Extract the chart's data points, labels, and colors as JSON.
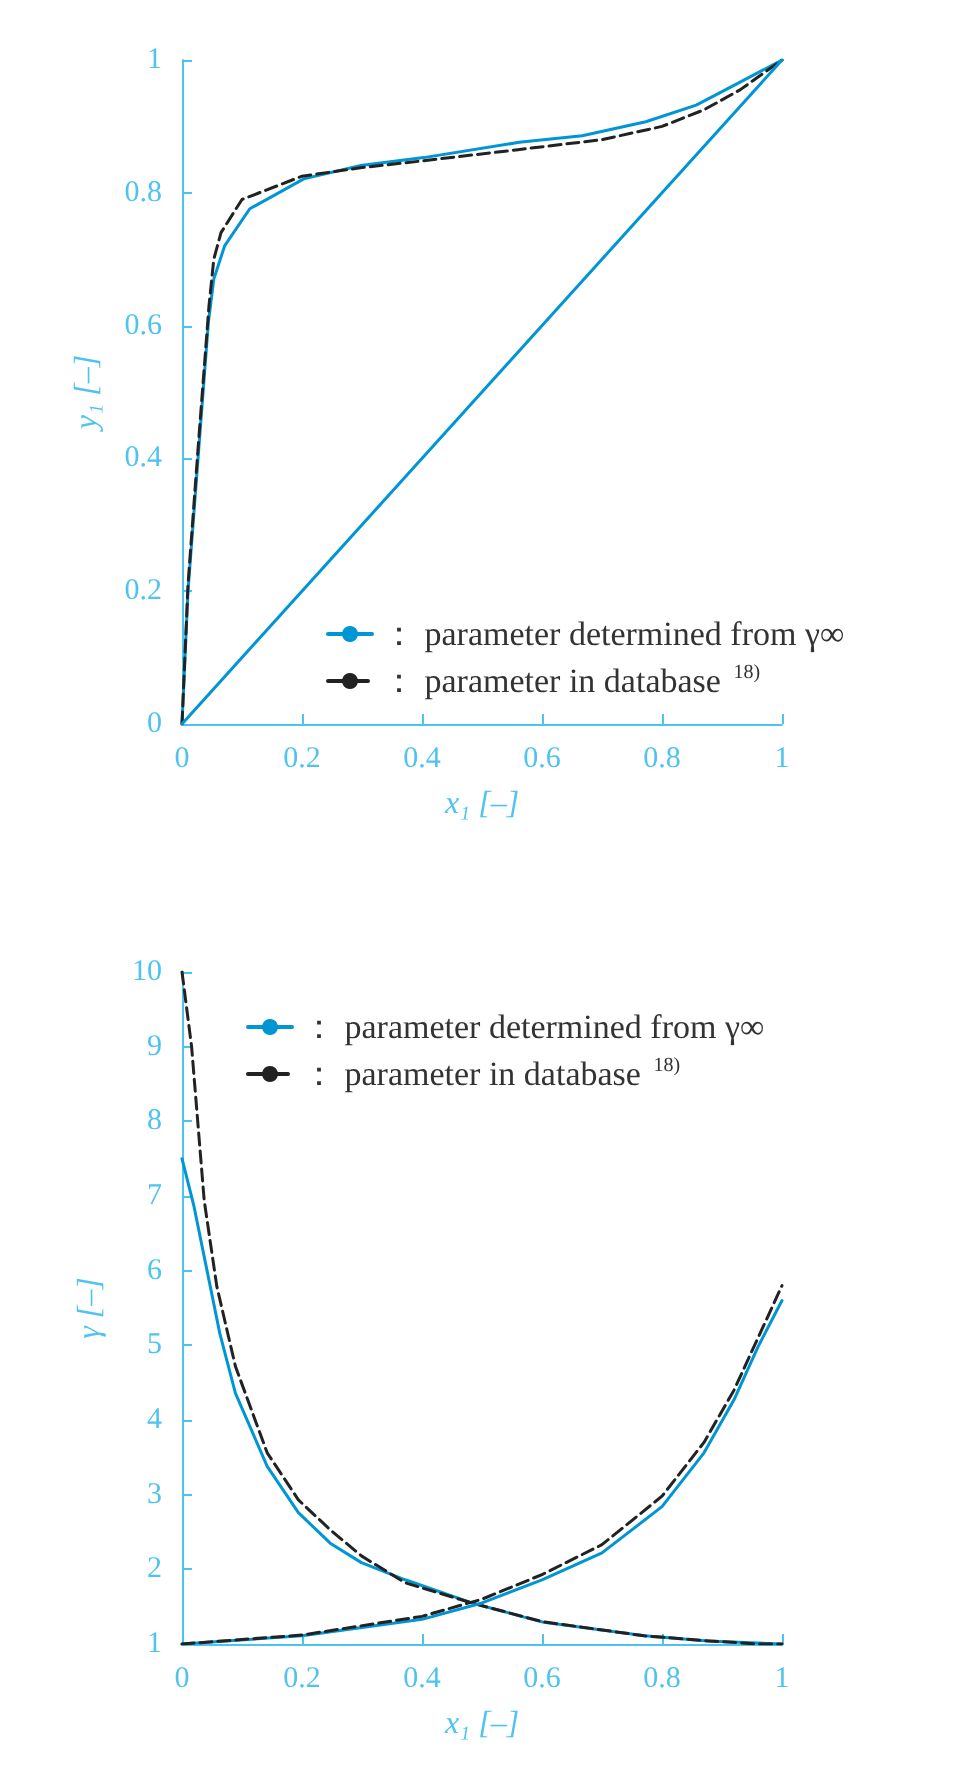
{
  "chart_data": [
    {
      "type": "line",
      "xlabel": "x₁ [–]",
      "ylabel": "y₁ [–]",
      "xlim": [
        0,
        1
      ],
      "ylim": [
        0,
        1
      ],
      "xticks": [
        0,
        0.2,
        0.4,
        0.6,
        0.8,
        1
      ],
      "yticks": [
        0,
        0.2,
        0.4,
        0.6,
        0.8,
        1
      ],
      "grid": false,
      "legend": "bottom right",
      "marker": "none",
      "series": [
        {
          "name": "： parameter determined from γ∞",
          "color": "#0095d4",
          "line_style": "solid",
          "x": [
            0,
            0.01,
            0.028,
            0.044,
            0.053,
            0.071,
            0.113,
            0.203,
            0.298,
            0.403,
            0.562,
            0.667,
            0.773,
            0.857,
            0.931,
            1
          ],
          "values": [
            0,
            0.2,
            0.415,
            0.605,
            0.67,
            0.72,
            0.776,
            0.821,
            0.841,
            0.853,
            0.876,
            0.886,
            0.907,
            0.932,
            0.967,
            1
          ]
        },
        {
          "name": "： parameter in database $^{18)}$",
          "color": "#222222",
          "line_style": "dashed",
          "x": [
            0,
            0.01,
            0.028,
            0.045,
            0.053,
            0.065,
            0.1,
            0.2,
            0.3,
            0.4,
            0.56,
            0.7,
            0.8,
            0.87,
            0.93,
            1
          ],
          "values": [
            0,
            0.21,
            0.43,
            0.63,
            0.7,
            0.74,
            0.79,
            0.825,
            0.838,
            0.848,
            0.865,
            0.88,
            0.9,
            0.925,
            0.955,
            1
          ]
        },
        {
          "color": "#0095d4",
          "line_style": "solid",
          "x": [
            0,
            1
          ],
          "values": [
            0,
            1
          ]
        }
      ]
    },
    {
      "type": "line",
      "xlabel": "x₁ [–]",
      "ylabel": "γ [–]",
      "xlim": [
        0,
        1
      ],
      "ylim": [
        1,
        10
      ],
      "xticks": [
        0,
        0.2,
        0.4,
        0.6,
        0.8,
        1
      ],
      "yticks": [
        1,
        2,
        3,
        4,
        5,
        6,
        7,
        8,
        9,
        10
      ],
      "grid": false,
      "legend": "top right",
      "marker": "none",
      "series": [
        {
          "name": "： parameter determined from γ∞",
          "color": "#0095d4",
          "line_style": "solid",
          "x": [
            0,
            0.02,
            0.063,
            0.089,
            0.142,
            0.194,
            0.247,
            0.299,
            0.372,
            0.483,
            0.603,
            0.771,
            0.876,
            1
          ],
          "values": [
            7.5,
            6.86,
            5.16,
            4.36,
            3.38,
            2.76,
            2.35,
            2.09,
            1.86,
            1.55,
            1.29,
            1.11,
            1.04,
            1
          ]
        },
        {
          "name": "： parameter in database $^{18)}$",
          "color": "#222222",
          "line_style": "dashed",
          "x": [
            0,
            0.016,
            0.037,
            0.058,
            0.089,
            0.142,
            0.194,
            0.247,
            0.299,
            0.372,
            0.483,
            0.6,
            0.77,
            0.88,
            0.96,
            1
          ],
          "values": [
            10,
            9,
            6.94,
            5.79,
            4.72,
            3.56,
            2.93,
            2.53,
            2.18,
            1.82,
            1.55,
            1.3,
            1.11,
            1.04,
            1,
            1
          ]
        },
        {
          "color": "#0095d4",
          "line_style": "solid",
          "x": [
            0,
            0.2,
            0.4,
            0.5,
            0.6,
            0.7,
            0.8,
            0.87,
            0.92,
            0.96,
            1
          ],
          "values": [
            1,
            1.11,
            1.33,
            1.55,
            1.86,
            2.22,
            2.84,
            3.56,
            4.27,
            4.98,
            5.6
          ]
        },
        {
          "color": "#222222",
          "line_style": "dashed",
          "x": [
            0,
            0.2,
            0.4,
            0.5,
            0.6,
            0.7,
            0.8,
            0.87,
            0.92,
            0.96,
            1
          ],
          "values": [
            1,
            1.12,
            1.37,
            1.6,
            1.93,
            2.33,
            2.98,
            3.7,
            4.4,
            5.1,
            5.8
          ]
        }
      ]
    }
  ]
}
